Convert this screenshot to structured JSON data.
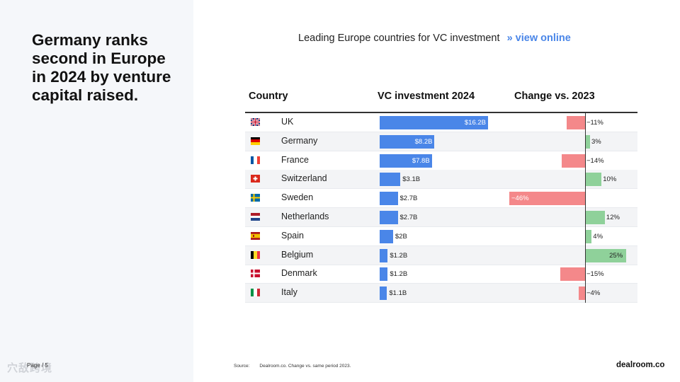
{
  "headline": "Germany ranks second in Europe in 2024 by venture capital raised.",
  "page_number": "Page / 5",
  "watermark": "穴敌跨境",
  "chart_title": "Leading Europe countries for VC investment",
  "view_online": {
    "arrow": "»",
    "label": "view online"
  },
  "columns": {
    "country": "Country",
    "vc": "VC investment 2024",
    "change": "Change vs. 2023"
  },
  "source": {
    "label": "Source:",
    "text": "Dealroom.co. Change vs. same period 2023."
  },
  "brand": "dealroom.co",
  "colors": {
    "vc_bar": "#4a86e8",
    "negative": "#f4888a",
    "positive": "#8fd19a",
    "link": "#4a86e8"
  },
  "chart_data": {
    "type": "table",
    "title": "Leading Europe countries for VC investment",
    "vc_unit": "$B",
    "change_unit": "%",
    "rows": [
      {
        "country": "UK",
        "flag": "flag-uk-icon",
        "vc": 16.2,
        "vc_label": "$16.2B",
        "change": -11,
        "change_label": "−11%"
      },
      {
        "country": "Germany",
        "flag": "flag-germany-icon",
        "vc": 8.2,
        "vc_label": "$8.2B",
        "change": 3,
        "change_label": "3%"
      },
      {
        "country": "France",
        "flag": "flag-france-icon",
        "vc": 7.8,
        "vc_label": "$7.8B",
        "change": -14,
        "change_label": "−14%"
      },
      {
        "country": "Switzerland",
        "flag": "flag-switzerland-icon",
        "vc": 3.1,
        "vc_label": "$3.1B",
        "change": 10,
        "change_label": "10%"
      },
      {
        "country": "Sweden",
        "flag": "flag-sweden-icon",
        "vc": 2.7,
        "vc_label": "$2.7B",
        "change": -46,
        "change_label": "−46%"
      },
      {
        "country": "Netherlands",
        "flag": "flag-netherlands-icon",
        "vc": 2.7,
        "vc_label": "$2.7B",
        "change": 12,
        "change_label": "12%"
      },
      {
        "country": "Spain",
        "flag": "flag-spain-icon",
        "vc": 2.0,
        "vc_label": "$2B",
        "change": 4,
        "change_label": "4%"
      },
      {
        "country": "Belgium",
        "flag": "flag-belgium-icon",
        "vc": 1.2,
        "vc_label": "$1.2B",
        "change": 25,
        "change_label": "25%"
      },
      {
        "country": "Denmark",
        "flag": "flag-denmark-icon",
        "vc": 1.2,
        "vc_label": "$1.2B",
        "change": -15,
        "change_label": "−15%"
      },
      {
        "country": "Italy",
        "flag": "flag-italy-icon",
        "vc": 1.1,
        "vc_label": "$1.1B",
        "change": -4,
        "change_label": "−4%"
      }
    ]
  }
}
